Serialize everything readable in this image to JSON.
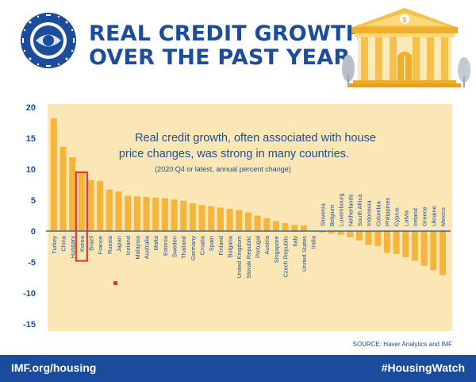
{
  "header": {
    "title_line1": "REAL CREDIT GROWTH",
    "title_line2": "OVER THE PAST YEAR",
    "logo_text": "INTERNATIONAL MONETARY FUND",
    "building_symbol": "$"
  },
  "annotation": {
    "line1": "Real credit growth, often associated with house",
    "line2": "price changes, was strong in many countries.",
    "note": "(2020:Q4 or latest, annual percent change)"
  },
  "source": "SOURCE: Haver Analytics and IMF",
  "footer": {
    "left": "IMF.org/housing",
    "right": "#HousingWatch"
  },
  "colors": {
    "brand_blue": "#1b4b9c",
    "bar": "#f6b43a",
    "panel": "#fbe7b6",
    "highlight": "#e03a2f"
  },
  "chart_data": {
    "type": "bar",
    "title": "",
    "xlabel": "",
    "ylabel": "",
    "ylim": [
      -15,
      20
    ],
    "yticks": [
      20,
      15,
      10,
      5,
      0,
      -5,
      -10,
      -15
    ],
    "grid": false,
    "highlighted_category": "Korea",
    "categories": [
      "Turkey",
      "China",
      "Hungary",
      "Korea",
      "Brazil",
      "France",
      "Russia",
      "Japan",
      "Iceland",
      "Malaysia",
      "Australia",
      "Malta",
      "Estonia",
      "Sweden",
      "Thailand",
      "Germany",
      "Croatia",
      "Spain",
      "Finland",
      "Bulgaria",
      "United Kingdom",
      "Slovak Republic",
      "Portugal",
      "Austria",
      "Singapore",
      "Czech Republic",
      "Italy",
      "United States",
      "India",
      "Slovenia",
      "Belgium",
      "Luxembourg",
      "Netherlands",
      "South Africa",
      "Indonesia",
      "Colombia",
      "Philippines",
      "Cyprus",
      "Latvia",
      "Ireland",
      "Greece",
      "Ukraine",
      "Mexico"
    ],
    "values": [
      18.2,
      13.6,
      11.9,
      9.6,
      8.2,
      8.1,
      6.7,
      6.4,
      5.7,
      5.6,
      5.5,
      5.4,
      5.3,
      5.1,
      4.9,
      4.5,
      4.2,
      4.0,
      3.8,
      3.6,
      3.4,
      3.0,
      2.5,
      2.1,
      1.6,
      1.3,
      1.0,
      0.9,
      0.1,
      -0.2,
      -0.4,
      -0.6,
      -1.0,
      -1.5,
      -2.2,
      -2.4,
      -3.5,
      -3.7,
      -4.2,
      -4.8,
      -5.6,
      -6.3,
      -7.1
    ]
  }
}
